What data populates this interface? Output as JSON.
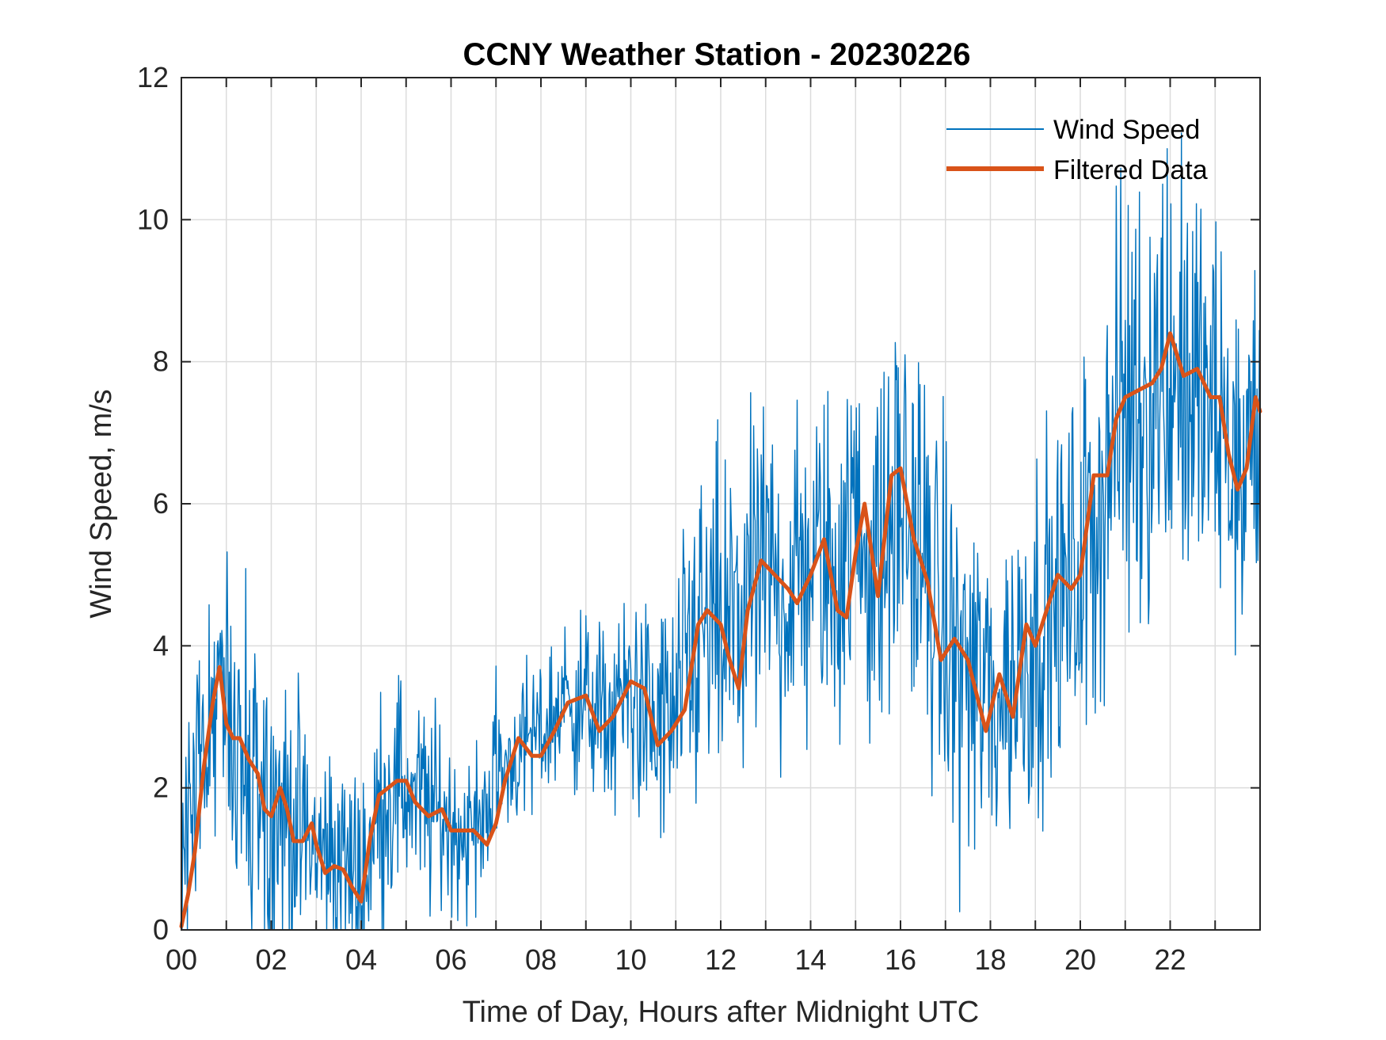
{
  "chart_data": {
    "type": "line",
    "title": "CCNY Weather Station - 20230226",
    "xlabel": "Time of Day, Hours after Midnight UTC",
    "ylabel": "Wind Speed, m/s",
    "xlim": [
      0,
      24
    ],
    "ylim": [
      0,
      12
    ],
    "x_ticks": [
      0,
      2,
      4,
      6,
      8,
      10,
      12,
      14,
      16,
      18,
      20,
      22
    ],
    "x_tick_labels": [
      "00",
      "02",
      "04",
      "06",
      "08",
      "10",
      "12",
      "14",
      "16",
      "18",
      "20",
      "22"
    ],
    "y_ticks": [
      0,
      2,
      4,
      6,
      8,
      10,
      12
    ],
    "y_tick_labels": [
      "0",
      "2",
      "4",
      "6",
      "8",
      "10",
      "12"
    ],
    "grid": true,
    "legend_position": "top-right",
    "series": [
      {
        "name": "Wind Speed",
        "color": "#0072BD",
        "style": "thin-noisy",
        "x": [
          0,
          0.5,
          1,
          1.5,
          2,
          2.5,
          3,
          3.5,
          4,
          4.5,
          5,
          5.5,
          6,
          6.5,
          7,
          7.5,
          8,
          8.5,
          9,
          9.5,
          10,
          10.5,
          11,
          11.5,
          12,
          12.5,
          13,
          13.5,
          14,
          14.5,
          15,
          15.5,
          16,
          16.5,
          17,
          17.5,
          18,
          18.5,
          19,
          19.5,
          20,
          20.5,
          21,
          21.5,
          22,
          22.5,
          23,
          23.5,
          24
        ],
        "values": [
          0.2,
          3.0,
          3.0,
          2.4,
          1.8,
          1.5,
          1.1,
          1.0,
          0.6,
          1.9,
          2.0,
          1.7,
          1.5,
          1.3,
          2.2,
          2.5,
          2.8,
          3.2,
          3.2,
          2.9,
          3.4,
          2.8,
          2.9,
          4.2,
          4.1,
          4.5,
          5.0,
          4.8,
          5.2,
          5.0,
          5.8,
          5.0,
          6.2,
          5.2,
          4.0,
          3.6,
          3.2,
          3.6,
          4.2,
          4.6,
          5.0,
          6.3,
          7.4,
          7.6,
          8.0,
          7.6,
          7.2,
          6.4,
          7.0
        ],
        "min": 0,
        "max": 11.8,
        "envelope": [
          1.5,
          0.9,
          1.2,
          1.2,
          1.0,
          0.9,
          0.8,
          0.8,
          0.8,
          0.8,
          0.8,
          0.7,
          0.6,
          0.6,
          0.6,
          0.5,
          0.6,
          0.6,
          0.6,
          0.7,
          0.7,
          0.9,
          1.0,
          1.2,
          1.2,
          1.2,
          1.2,
          1.2,
          1.2,
          1.2,
          1.2,
          1.2,
          1.3,
          1.3,
          1.3,
          1.3,
          1.3,
          1.2,
          1.2,
          1.2,
          1.3,
          1.5,
          1.7,
          1.7,
          1.7,
          1.5,
          1.3,
          1.3,
          1.5
        ]
      },
      {
        "name": "Filtered Data",
        "color": "#D95319",
        "style": "thick",
        "x": [
          0,
          0.15,
          0.3,
          0.5,
          0.7,
          0.85,
          1.0,
          1.15,
          1.3,
          1.5,
          1.7,
          1.85,
          2.0,
          2.2,
          2.35,
          2.5,
          2.7,
          2.9,
          3.0,
          3.2,
          3.4,
          3.6,
          3.8,
          4.0,
          4.2,
          4.4,
          4.6,
          4.8,
          5.0,
          5.2,
          5.5,
          5.8,
          6.0,
          6.2,
          6.5,
          6.8,
          7.0,
          7.2,
          7.5,
          7.8,
          8.0,
          8.3,
          8.6,
          9.0,
          9.3,
          9.6,
          10.0,
          10.3,
          10.6,
          10.9,
          11.2,
          11.5,
          11.7,
          12.0,
          12.2,
          12.4,
          12.6,
          12.9,
          13.2,
          13.5,
          13.7,
          14.0,
          14.3,
          14.6,
          14.8,
          15.0,
          15.2,
          15.5,
          15.8,
          16.0,
          16.3,
          16.6,
          16.9,
          17.2,
          17.5,
          17.7,
          17.9,
          18.2,
          18.5,
          18.8,
          19.0,
          19.3,
          19.5,
          19.8,
          20.0,
          20.3,
          20.6,
          20.8,
          21.0,
          21.3,
          21.6,
          21.8,
          22.0,
          22.3,
          22.6,
          22.9,
          23.1,
          23.3,
          23.5,
          23.7,
          23.9,
          24.0
        ],
        "values": [
          0.05,
          0.5,
          1.1,
          2.3,
          3.2,
          3.7,
          2.9,
          2.7,
          2.7,
          2.4,
          2.2,
          1.7,
          1.6,
          2.0,
          1.7,
          1.25,
          1.25,
          1.5,
          1.2,
          0.8,
          0.9,
          0.85,
          0.6,
          0.4,
          1.3,
          1.9,
          2.0,
          2.1,
          2.1,
          1.8,
          1.6,
          1.7,
          1.4,
          1.4,
          1.4,
          1.2,
          1.5,
          2.1,
          2.7,
          2.45,
          2.45,
          2.8,
          3.2,
          3.3,
          2.8,
          3.0,
          3.5,
          3.4,
          2.6,
          2.8,
          3.1,
          4.3,
          4.5,
          4.3,
          3.8,
          3.4,
          4.5,
          5.2,
          5.0,
          4.8,
          4.6,
          5.0,
          5.5,
          4.5,
          4.4,
          5.3,
          6.0,
          4.7,
          6.4,
          6.5,
          5.5,
          4.9,
          3.8,
          4.1,
          3.8,
          3.3,
          2.8,
          3.6,
          3.0,
          4.3,
          4.0,
          4.6,
          5.0,
          4.8,
          5.0,
          6.4,
          6.4,
          7.2,
          7.5,
          7.6,
          7.7,
          7.9,
          8.4,
          7.8,
          7.9,
          7.5,
          7.5,
          6.7,
          6.2,
          6.5,
          7.5,
          7.3
        ]
      }
    ]
  }
}
